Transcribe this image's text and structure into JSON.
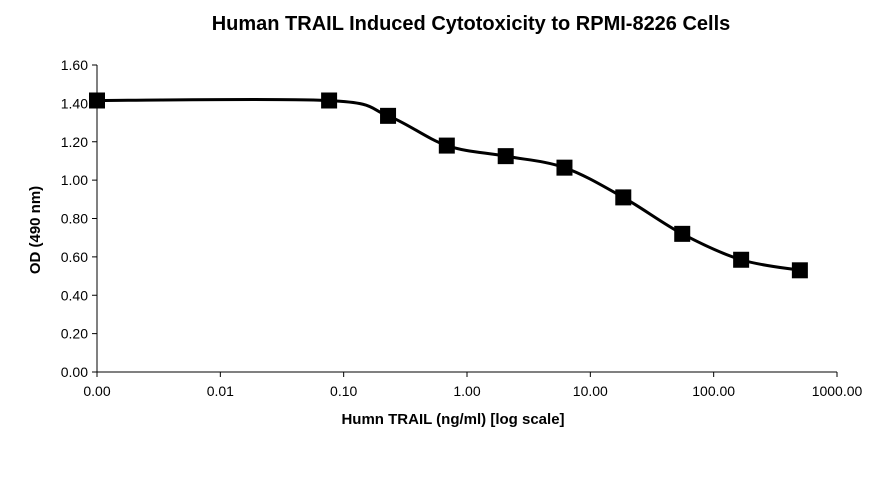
{
  "chart_data": {
    "type": "line",
    "title": "Human TRAIL Induced Cytotoxicity to RPMI-8226 Cells",
    "xlabel": "Humn TRAIL (ng/ml) [log scale]",
    "ylabel": "OD (490 nm)",
    "x_scale": "log",
    "x_ticks": [
      0.001,
      0.01,
      0.1,
      1,
      10,
      100,
      1000
    ],
    "x_tick_labels": [
      "0.00",
      "0.01",
      "0.10",
      "1.00",
      "10.00",
      "100.00",
      "1000.00"
    ],
    "y_ticks": [
      0,
      0.2,
      0.4,
      0.6,
      0.8,
      1.0,
      1.2,
      1.4,
      1.6
    ],
    "y_tick_labels": [
      "0.00",
      "0.20",
      "0.40",
      "0.60",
      "0.80",
      "1.00",
      "1.20",
      "1.40",
      "1.60"
    ],
    "xlim": [
      0.001,
      1000
    ],
    "ylim": [
      0,
      1.6
    ],
    "grid": false,
    "legend": "none",
    "marker": "square",
    "series_color": "#000000",
    "series": [
      {
        "x": [
          0.001,
          0.0762,
          0.229,
          0.686,
          2.06,
          6.17,
          18.5,
          55.6,
          167,
          500
        ],
        "y": [
          1.415,
          1.415,
          1.335,
          1.18,
          1.125,
          1.065,
          0.91,
          0.72,
          0.585,
          0.53
        ]
      }
    ]
  }
}
